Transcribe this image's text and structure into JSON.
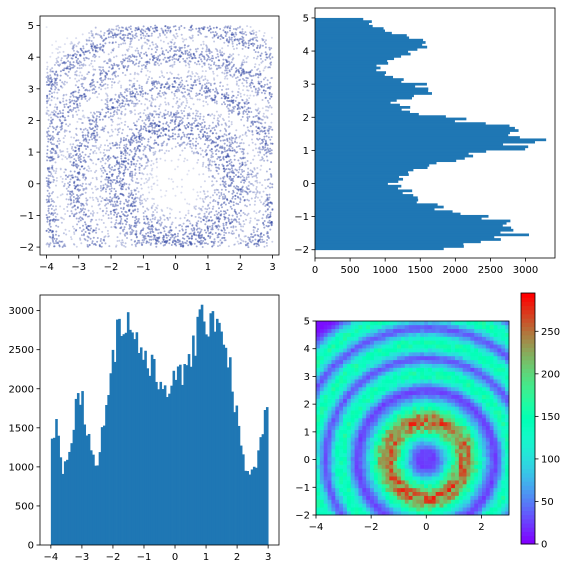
{
  "chart_data": [
    {
      "type": "scatter",
      "title": "",
      "xlabel": "",
      "ylabel": "",
      "xlim": [
        -4.2,
        3.2
      ],
      "ylim": [
        -2.25,
        5.3
      ],
      "xticks": [
        -4,
        -3,
        -2,
        -1,
        0,
        1,
        2,
        3
      ],
      "yticks": [
        -2,
        -1,
        0,
        1,
        2,
        3,
        4,
        5
      ],
      "color": "#2a3fa0",
      "description_rings_radii": [
        1.8,
        3.1,
        4.1,
        5.0
      ],
      "data_range_x": [
        -4,
        3
      ],
      "data_range_y": [
        -2,
        5
      ],
      "center": [
        0,
        0
      ]
    },
    {
      "type": "bar",
      "orientation": "horizontal",
      "title": "",
      "xlabel": "",
      "ylabel": "",
      "xlim": [
        0,
        3420
      ],
      "ylim": [
        -2.25,
        5.3
      ],
      "xticks": [
        0,
        500,
        1000,
        1500,
        2000,
        2500,
        3000
      ],
      "yticks": [
        -2,
        -1,
        0,
        1,
        2,
        3,
        4,
        5
      ],
      "color": "#1f77b4",
      "bin_edges_start": -2,
      "bin_edges_end": 5,
      "keypoints": [
        [
          -2.0,
          1600
        ],
        [
          -1.85,
          2100
        ],
        [
          -1.7,
          2600
        ],
        [
          -1.5,
          2900
        ],
        [
          -1.3,
          3000
        ],
        [
          -1.15,
          2700
        ],
        [
          -1.0,
          2300
        ],
        [
          -0.8,
          1900
        ],
        [
          -0.6,
          1600
        ],
        [
          -0.4,
          1400
        ],
        [
          -0.2,
          1250
        ],
        [
          0.0,
          1150
        ],
        [
          0.2,
          1200
        ],
        [
          0.4,
          1350
        ],
        [
          0.6,
          1650
        ],
        [
          0.8,
          2100
        ],
        [
          1.0,
          2650
        ],
        [
          1.2,
          3000
        ],
        [
          1.4,
          3100
        ],
        [
          1.6,
          2850
        ],
        [
          1.8,
          2450
        ],
        [
          2.0,
          1850
        ],
        [
          2.2,
          1400
        ],
        [
          2.4,
          1150
        ],
        [
          2.6,
          1300
        ],
        [
          2.8,
          1650
        ],
        [
          3.0,
          1550
        ],
        [
          3.2,
          1050
        ],
        [
          3.45,
          850
        ],
        [
          3.7,
          1050
        ],
        [
          4.0,
          1400
        ],
        [
          4.2,
          1650
        ],
        [
          4.4,
          1400
        ],
        [
          4.6,
          1000
        ],
        [
          4.8,
          850
        ],
        [
          5.0,
          700
        ]
      ]
    },
    {
      "type": "bar",
      "title": "",
      "xlabel": "",
      "ylabel": "",
      "xlim": [
        -4.35,
        3.35
      ],
      "ylim": [
        0,
        3200
      ],
      "xticks": [
        -4,
        -3,
        -2,
        -1,
        0,
        1,
        2,
        3
      ],
      "yticks": [
        0,
        500,
        1000,
        1500,
        2000,
        2500,
        3000
      ],
      "color": "#1f77b4",
      "bin_edges_start": -4,
      "bin_edges_end": 3,
      "keypoints": [
        [
          -4.0,
          1300
        ],
        [
          -3.8,
          1550
        ],
        [
          -3.6,
          950
        ],
        [
          -3.4,
          1250
        ],
        [
          -3.2,
          1800
        ],
        [
          -3.0,
          1900
        ],
        [
          -2.8,
          1450
        ],
        [
          -2.6,
          1000
        ],
        [
          -2.4,
          1250
        ],
        [
          -2.2,
          1900
        ],
        [
          -2.0,
          2500
        ],
        [
          -1.8,
          2800
        ],
        [
          -1.6,
          2900
        ],
        [
          -1.4,
          2750
        ],
        [
          -1.2,
          2600
        ],
        [
          -1.0,
          2450
        ],
        [
          -0.8,
          2250
        ],
        [
          -0.6,
          2150
        ],
        [
          -0.4,
          2050
        ],
        [
          -0.2,
          2100
        ],
        [
          0.0,
          2050
        ],
        [
          0.2,
          2150
        ],
        [
          0.4,
          2350
        ],
        [
          0.6,
          2550
        ],
        [
          0.8,
          2750
        ],
        [
          1.0,
          2900
        ],
        [
          1.2,
          3000
        ],
        [
          1.4,
          2850
        ],
        [
          1.6,
          2650
        ],
        [
          1.8,
          2200
        ],
        [
          2.0,
          1600
        ],
        [
          2.2,
          1100
        ],
        [
          2.4,
          900
        ],
        [
          2.6,
          950
        ],
        [
          2.8,
          1400
        ],
        [
          3.0,
          1900
        ]
      ]
    },
    {
      "type": "heatmap",
      "title": "",
      "xlabel": "",
      "ylabel": "",
      "xlim": [
        -4,
        3
      ],
      "ylim": [
        -2,
        5
      ],
      "xticks": [
        -4,
        -2,
        0,
        2
      ],
      "yticks": [
        -2,
        -1,
        0,
        1,
        2,
        3,
        4,
        5
      ],
      "colormap": "rainbow",
      "colorbar_range": [
        0,
        295
      ],
      "colorbar_ticks": [
        0,
        50,
        100,
        150,
        200,
        250
      ],
      "ring_radii": [
        1.4,
        3.1,
        4.2,
        5.3
      ],
      "center": [
        0,
        0
      ]
    }
  ]
}
